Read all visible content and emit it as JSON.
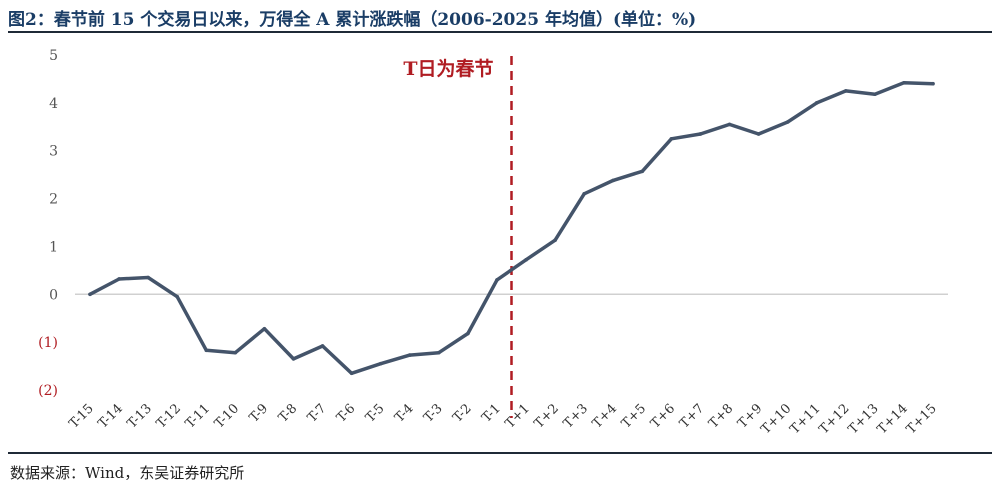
{
  "figure": {
    "title": "图2：春节前 15 个交易日以来，万得全 A 累计涨跌幅（2006-2025 年均值）(单位：%)",
    "source": "数据来源：Wind，东吴证券研究所"
  },
  "chart_data": {
    "type": "line",
    "x": [
      "T-15",
      "T-14",
      "T-13",
      "T-12",
      "T-11",
      "T-10",
      "T-9",
      "T-8",
      "T-7",
      "T-6",
      "T-5",
      "T-4",
      "T-3",
      "T-2",
      "T-1",
      "T+1",
      "T+2",
      "T+3",
      "T+4",
      "T+5",
      "T+6",
      "T+7",
      "T+8",
      "T+9",
      "T+10",
      "T+11",
      "T+12",
      "T+13",
      "T+14",
      "T+15"
    ],
    "y": [
      0.0,
      0.32,
      0.35,
      -0.05,
      -1.17,
      -1.22,
      -0.72,
      -1.35,
      -1.08,
      -1.65,
      -1.45,
      -1.27,
      -1.22,
      -0.82,
      0.3,
      0.72,
      1.13,
      2.1,
      2.38,
      2.57,
      3.25,
      3.35,
      3.55,
      3.35,
      3.6,
      4.0,
      4.25,
      4.18,
      4.42,
      4.4
    ],
    "ylim": [
      -2,
      5
    ],
    "yticks": [
      5,
      4,
      3,
      2,
      1,
      0,
      -1,
      -2
    ],
    "ytick_labels": [
      "5",
      "4",
      "3",
      "2",
      "1",
      "0",
      "(1)",
      "(2)"
    ],
    "zero_line": true,
    "grid": false,
    "line_color": "#44546a",
    "annotation": {
      "text": "T日为春节",
      "between": [
        "T-1",
        "T+1"
      ],
      "color": "#b01c22"
    }
  }
}
